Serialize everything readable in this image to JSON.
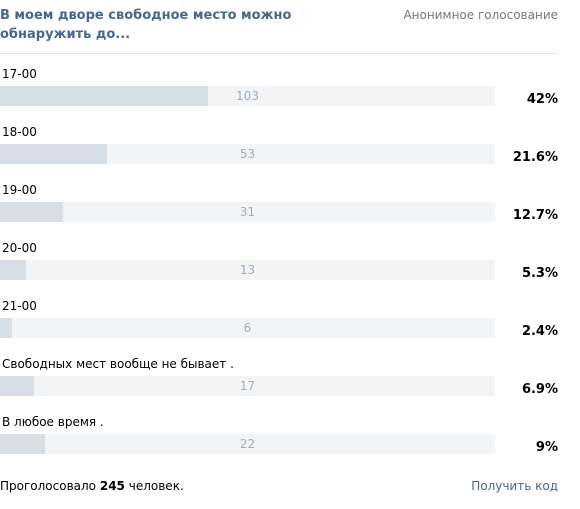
{
  "poll": {
    "title": "В моем дворе свободное место можно обнаружить до...",
    "type_label": "Анонимное голосование",
    "options": [
      {
        "label": "17-00",
        "count": "103",
        "percent": "42%",
        "share": 0.42
      },
      {
        "label": "18-00",
        "count": "53",
        "percent": "21.6%",
        "share": 0.216
      },
      {
        "label": "19-00",
        "count": "31",
        "percent": "12.7%",
        "share": 0.127
      },
      {
        "label": "20-00",
        "count": "13",
        "percent": "5.3%",
        "share": 0.053
      },
      {
        "label": "21-00",
        "count": "6",
        "percent": "2.4%",
        "share": 0.024
      },
      {
        "label": "Свободных мест вообще не бывает .",
        "count": "17",
        "percent": "6.9%",
        "share": 0.069
      },
      {
        "label": "В любое время .",
        "count": "22",
        "percent": "9%",
        "share": 0.09
      }
    ],
    "footer": {
      "total_prefix": "Проголосовало",
      "total_count": "245",
      "total_suffix": "человек.",
      "get_code_label": "Получить код"
    },
    "colors": {
      "title": "#45688e",
      "link": "#45688e",
      "bar_track": "#f2f4f6",
      "bar_fill": "#d8dee6",
      "bar_count": "#a2aebc",
      "muted": "#777777"
    }
  }
}
